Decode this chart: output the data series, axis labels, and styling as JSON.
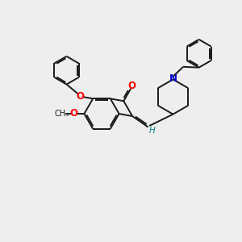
{
  "background_color": "#eeeeee",
  "bond_color": "#1a1a1a",
  "oxygen_color": "#ff0000",
  "nitrogen_color": "#0000cc",
  "hydrogen_color": "#008080",
  "figsize": [
    3.0,
    3.0
  ],
  "dpi": 100,
  "xlim": [
    0,
    10
  ],
  "ylim": [
    0,
    10
  ]
}
